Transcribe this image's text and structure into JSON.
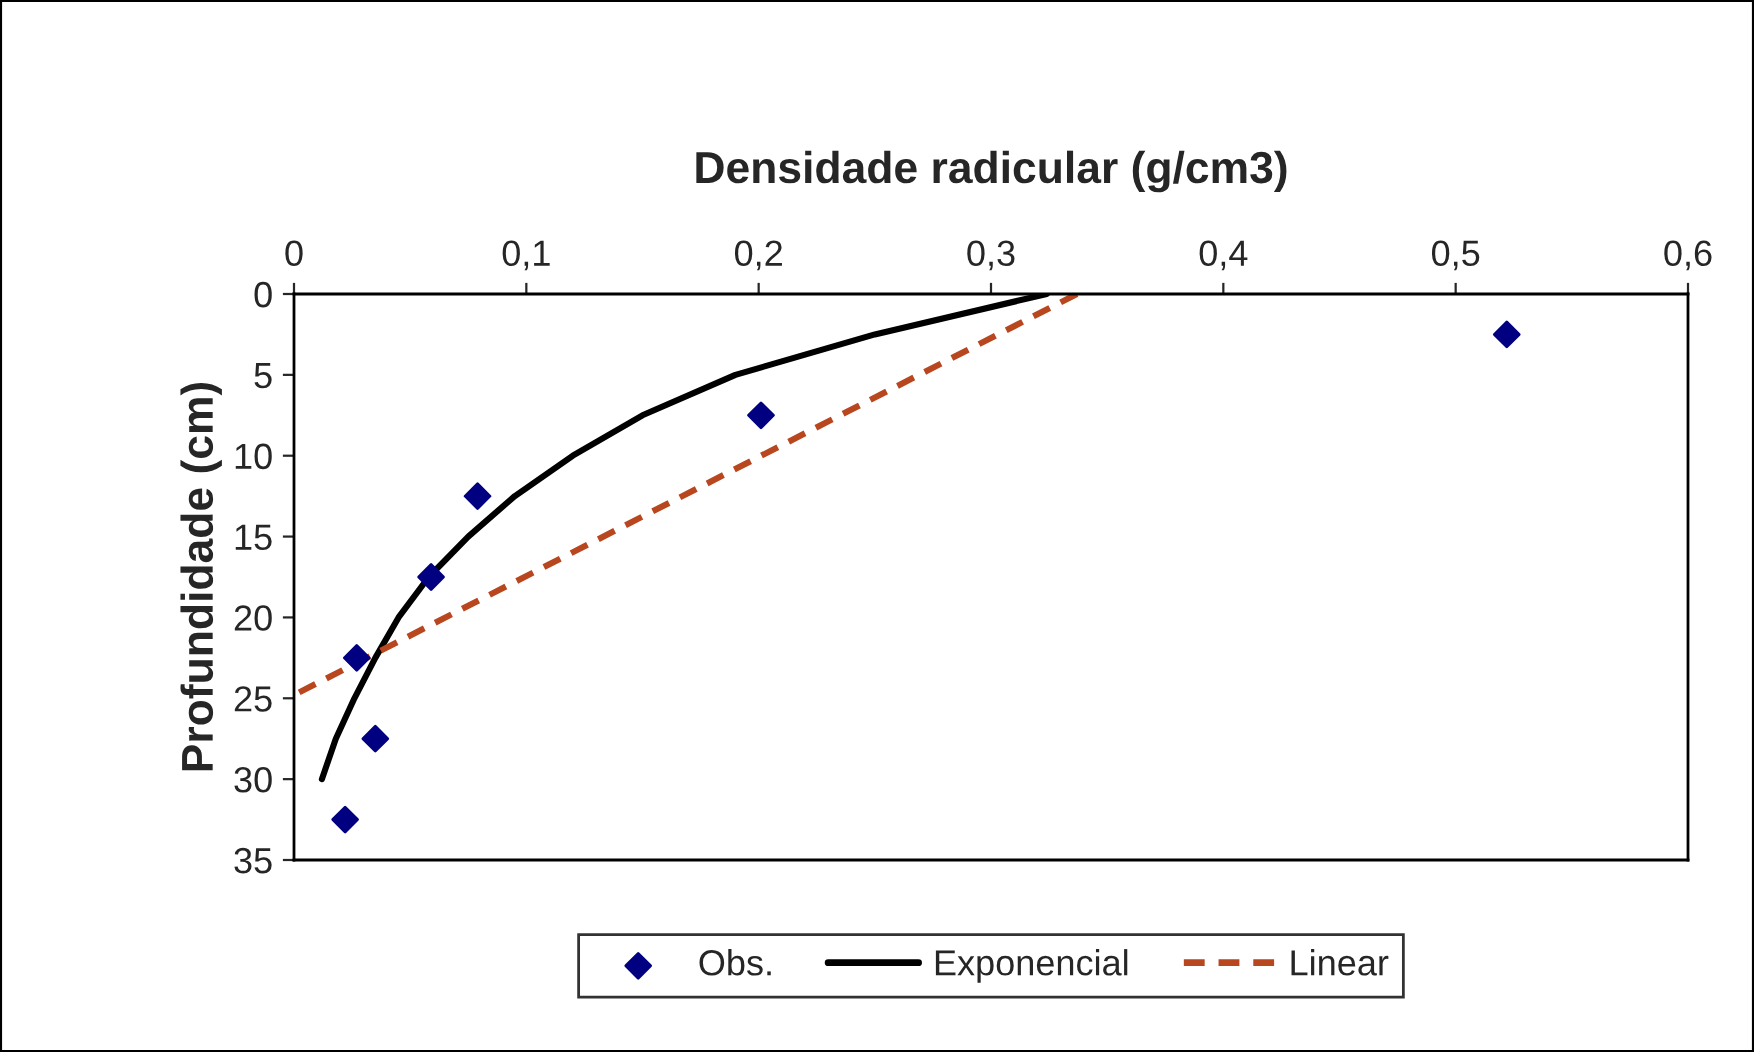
{
  "chart_data": {
    "type": "scatter",
    "title": "Densidade radicular (g/cm3)",
    "ylabel": "Profundidade (cm)",
    "xlim": [
      0,
      0.6
    ],
    "xticks": [
      0,
      {
        "value": 0.1,
        "label": "0,1"
      },
      {
        "value": 0.2,
        "label": "0,2"
      },
      {
        "value": 0.3,
        "label": "0,3"
      },
      {
        "value": 0.4,
        "label": "0,4"
      },
      {
        "value": 0.5,
        "label": "0,5"
      },
      {
        "value": 0.6,
        "label": "0,6"
      }
    ],
    "ylim": [
      35,
      0
    ],
    "yticks": [
      0,
      5,
      10,
      15,
      20,
      25,
      30,
      35
    ],
    "grid": false,
    "legend": "bottom",
    "series": [
      {
        "name": "Obs.",
        "marker": "diamond",
        "color": "#000080",
        "x": [
          0.522,
          0.201,
          0.079,
          0.059,
          0.027,
          0.035,
          0.022
        ],
        "values": [
          2.5,
          7.5,
          12.5,
          17.5,
          22.5,
          27.5,
          32.5
        ]
      },
      {
        "name": "Exponencial",
        "type": "line",
        "line_style": "solid",
        "color": "#000000",
        "x": [
          0.324,
          0.25,
          0.19,
          0.15,
          0.12,
          0.095,
          0.075,
          0.058,
          0.045,
          0.035,
          0.026,
          0.018,
          0.012
        ],
        "values": [
          0,
          2.5,
          5,
          7.5,
          10,
          12.5,
          15,
          17.5,
          20,
          22.5,
          25,
          27.5,
          30
        ]
      },
      {
        "name": "Linear",
        "type": "line",
        "line_style": "dashed",
        "color": "#b8461e",
        "x": [
          0.337,
          0.0
        ],
        "values": [
          0,
          24.8
        ]
      }
    ]
  }
}
